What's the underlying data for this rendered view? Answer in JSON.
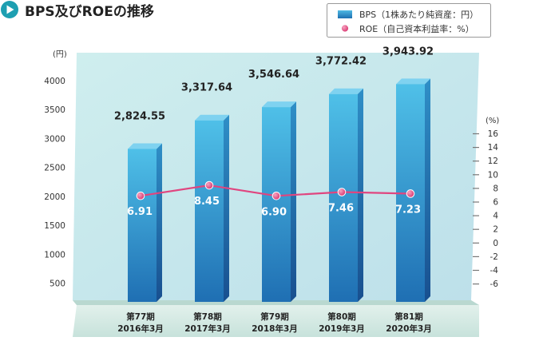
{
  "title": "BPS及びROEの推移",
  "colors": {
    "accent": "#1e9fb1",
    "bps_bar": "#2a8fc8",
    "roe_line": "#e0457f",
    "plot_bg": "#d3eef0",
    "base_band": "#d7ebe6"
  },
  "chart_data": {
    "type": "bar",
    "categories": [
      {
        "period": "第77期",
        "date": "2016年3月"
      },
      {
        "period": "第78期",
        "date": "2017年3月"
      },
      {
        "period": "第79期",
        "date": "2018年3月"
      },
      {
        "period": "第80期",
        "date": "2019年3月"
      },
      {
        "period": "第81期",
        "date": "2020年3月"
      }
    ],
    "series": [
      {
        "name": "BPS（1株あたり純資産：円）",
        "type": "bar",
        "axis": "left",
        "values": [
          2824.55,
          3317.64,
          3546.64,
          3772.42,
          3943.92
        ],
        "labels": [
          "2,824.55",
          "3,317.64",
          "3,546.64",
          "3,772.42",
          "3,943.92"
        ]
      },
      {
        "name": "ROE（自己資本利益率：%）",
        "type": "line",
        "axis": "right",
        "values": [
          6.91,
          8.45,
          6.9,
          7.46,
          7.23
        ],
        "labels": [
          "6.91",
          "8.45",
          "6.90",
          "7.46",
          "7.23"
        ]
      }
    ],
    "y_left": {
      "unit": "(円)",
      "ticks": [
        "500",
        "1000",
        "1500",
        "2000",
        "2500",
        "3000",
        "3500",
        "4000"
      ]
    },
    "y_right": {
      "unit": "(%)",
      "ticks": [
        "-6",
        "-4",
        "-2",
        "0",
        "2",
        "4",
        "6",
        "8",
        "10",
        "12",
        "14",
        "16"
      ]
    },
    "legend_position": "top-right"
  }
}
